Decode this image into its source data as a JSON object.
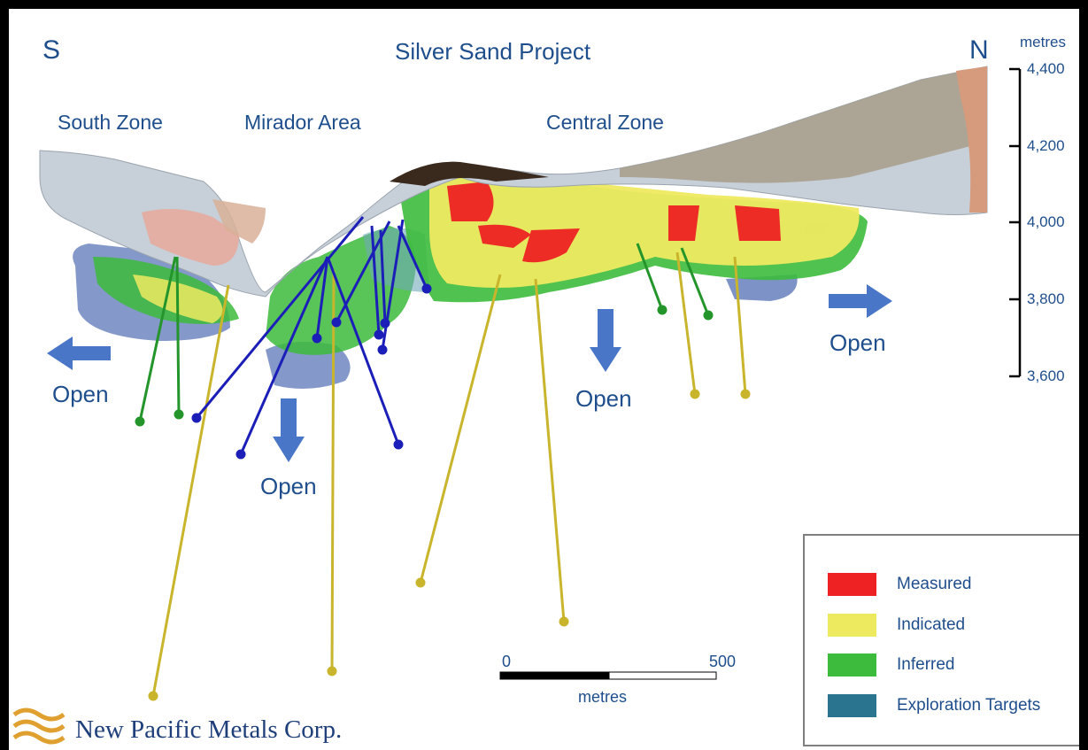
{
  "compass": {
    "south": "S",
    "north": "N"
  },
  "title": "Silver Sand Project",
  "zones": {
    "south": "South Zone",
    "mirador": "Mirador Area",
    "central": "Central Zone"
  },
  "open_labels": {
    "left": "Open",
    "mirador": "Open",
    "central": "Open",
    "right": "Open"
  },
  "elevation_axis": {
    "unit": "metres",
    "ticks": [
      "4,400",
      "4,200",
      "4,000",
      "3,800",
      "3,600"
    ]
  },
  "scale_bar": {
    "start": "0",
    "end": "500",
    "unit": "metres"
  },
  "legend": [
    {
      "label": "Measured",
      "color": "#ee2222"
    },
    {
      "label": "Indicated",
      "color": "#eeea60"
    },
    {
      "label": "Inferred",
      "color": "#3cbb3c"
    },
    {
      "label": "Exploration Targets",
      "color": "#2a7490"
    }
  ],
  "colors": {
    "text": "#1f4e8c",
    "arrow": "#4a76c8",
    "drill_yellow": "#c9b52c",
    "drill_blue": "#1b1fb8",
    "drill_green": "#23952b"
  },
  "logo": {
    "name": "New Pacific Metals Corp."
  }
}
